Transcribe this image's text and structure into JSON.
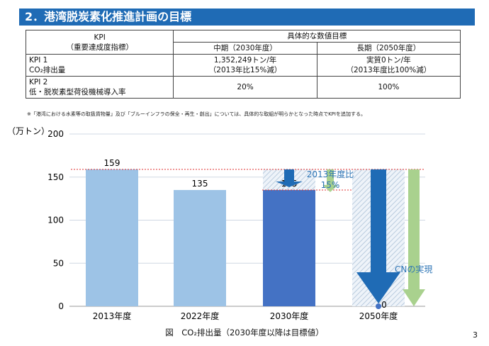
{
  "title": "2．港湾脱炭素化推進計画の目標",
  "table": {
    "kpi_header": "KPI",
    "kpi_sub": "（重要達成度指標）",
    "target_header": "具体的な数値目標",
    "mid": "中期（2030年度）",
    "long": "長期（2050年度）",
    "rows": [
      {
        "l1": "KPI 1",
        "l2": "CO₂排出量",
        "mid1": "1,352,249トン/年",
        "mid2": "（2013年比15%減）",
        "long1": "実質0トン/年",
        "long2": "（2013年度比100%減）"
      },
      {
        "l1": "KPI 2",
        "l2": "低・脱炭素型荷役機械導入率",
        "mid1": "20%",
        "long1": "100%"
      }
    ]
  },
  "note": "※「港湾における水素等の取扱貨物量」及び「ブルーインフラの保全・再生・創出」については、具体的な取組が明らかとなった時点でKPIを追加する。",
  "chart_data": {
    "type": "bar",
    "ylabel": "（万トン）",
    "ylim": [
      0,
      200
    ],
    "yticks": [
      0,
      50,
      100,
      150,
      200
    ],
    "categories": [
      "2013年度",
      "2022年度",
      "2030年度",
      "2050年度"
    ],
    "values": [
      159,
      135,
      135,
      0
    ],
    "data_labels": [
      "159",
      "135",
      "135",
      "0"
    ],
    "colors": [
      "#9dc3e6",
      "#9dc3e6",
      "#4472c4",
      "#4472c4"
    ],
    "annotations": [
      "2013年度比\n15%",
      "CNの実現"
    ],
    "grid": true
  },
  "caption": "図　CO₂排出量（2030年度以降は目標値）",
  "page": "3"
}
